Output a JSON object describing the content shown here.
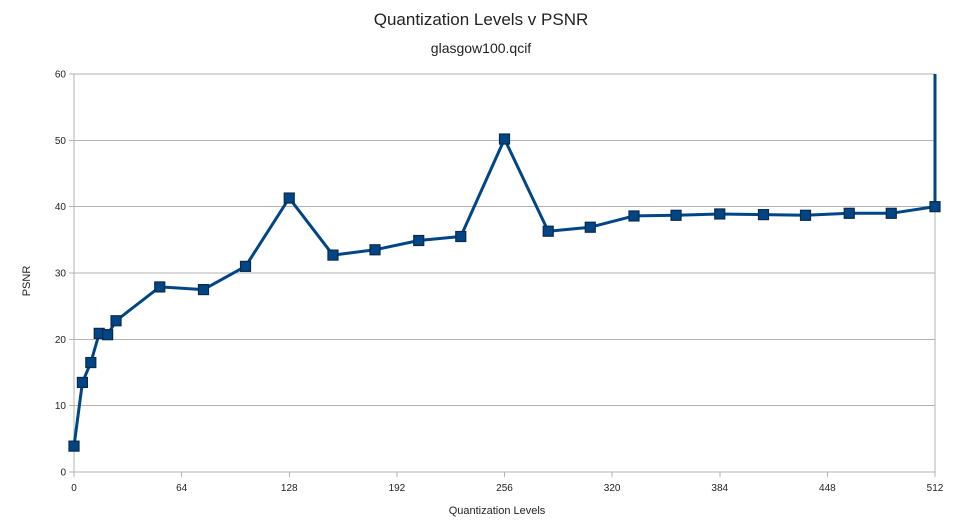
{
  "chart_data": {
    "type": "line",
    "title": "Quantization Levels v PSNR",
    "subtitle": "glasgow100.qcif",
    "xlabel": "Quantization Levels",
    "ylabel": "PSNR",
    "xlim": [
      0,
      512
    ],
    "ylim": [
      0,
      60
    ],
    "xticks": [
      0,
      64,
      128,
      192,
      256,
      320,
      384,
      448,
      512
    ],
    "yticks": [
      0,
      10,
      20,
      30,
      40,
      50,
      60
    ],
    "grid": "horizontal",
    "legend": "none",
    "series_color": "#004586",
    "marker_color": "#004586",
    "series": [
      {
        "points": [
          [
            0,
            3.9
          ],
          [
            5,
            13.5
          ],
          [
            10,
            16.5
          ],
          [
            15,
            20.9
          ],
          [
            20,
            20.7
          ],
          [
            25,
            22.8
          ],
          [
            51,
            27.9
          ],
          [
            77,
            27.5
          ],
          [
            102,
            31.0
          ],
          [
            128,
            41.3
          ],
          [
            154,
            32.7
          ],
          [
            179,
            33.5
          ],
          [
            205,
            34.9
          ],
          [
            230,
            35.5
          ],
          [
            256,
            50.2
          ],
          [
            282,
            36.3
          ],
          [
            307,
            36.9
          ],
          [
            333,
            38.6
          ],
          [
            358,
            38.7
          ],
          [
            384,
            38.9
          ],
          [
            410,
            38.8
          ],
          [
            435,
            38.7
          ],
          [
            461,
            39.0
          ],
          [
            486,
            39.0
          ],
          [
            512,
            40.0
          ],
          [
            512,
            60
          ]
        ],
        "marker_count": 25
      }
    ]
  }
}
